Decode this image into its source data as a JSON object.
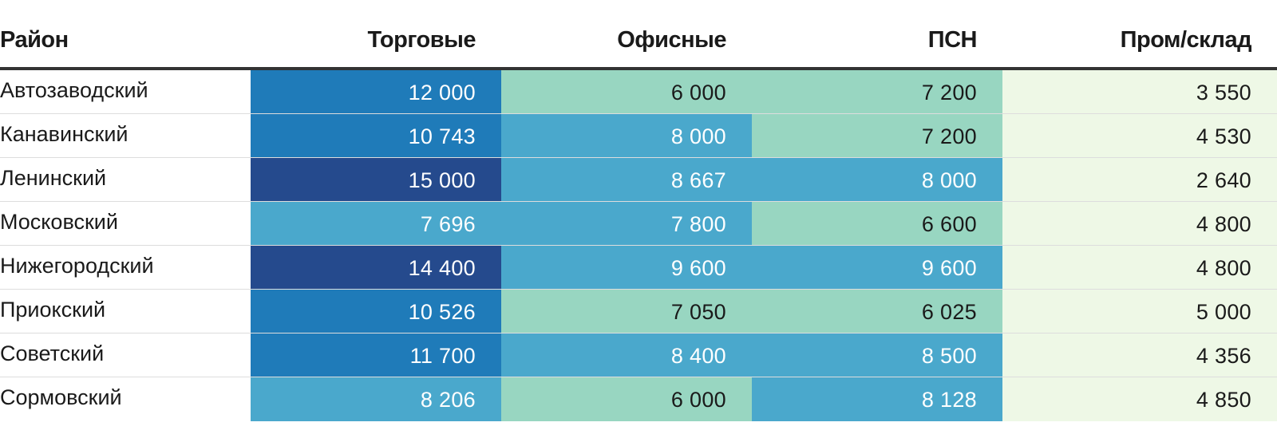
{
  "chart_data": {
    "type": "table",
    "columns": [
      "Район",
      "Торговые",
      "Офисные",
      "ПСН",
      "Пром/склад"
    ],
    "rows": [
      {
        "district": "Автозаводский",
        "values": [
          12000,
          6000,
          7200,
          3550
        ],
        "labels": [
          "12 000",
          "6 000",
          "7 200",
          "3 550"
        ],
        "colors": [
          "#1f7bb9",
          "#98d6c1",
          "#98d6c1",
          "#eef8e6"
        ]
      },
      {
        "district": "Канавинский",
        "values": [
          10743,
          8000,
          7200,
          4530
        ],
        "labels": [
          "10 743",
          "8 000",
          "7 200",
          "4 530"
        ],
        "colors": [
          "#1f7bb9",
          "#4aa8cc",
          "#98d6c1",
          "#eef8e6"
        ]
      },
      {
        "district": "Ленинский",
        "values": [
          15000,
          8667,
          8000,
          2640
        ],
        "labels": [
          "15 000",
          "8 667",
          "8 000",
          "2 640"
        ],
        "colors": [
          "#254a8d",
          "#4aa8cc",
          "#4aa8cc",
          "#eef8e6"
        ]
      },
      {
        "district": "Московский",
        "values": [
          7696,
          7800,
          6600,
          4800
        ],
        "labels": [
          "7 696",
          "7 800",
          "6 600",
          "4 800"
        ],
        "colors": [
          "#4aa8cc",
          "#4aa8cc",
          "#98d6c1",
          "#eef8e6"
        ]
      },
      {
        "district": "Нижегородский",
        "values": [
          14400,
          9600,
          9600,
          4800
        ],
        "labels": [
          "14 400",
          "9 600",
          "9 600",
          "4 800"
        ],
        "colors": [
          "#254a8d",
          "#4aa8cc",
          "#4aa8cc",
          "#eef8e6"
        ]
      },
      {
        "district": "Приокский",
        "values": [
          10526,
          7050,
          6025,
          5000
        ],
        "labels": [
          "10 526",
          "7 050",
          "6 025",
          "5 000"
        ],
        "colors": [
          "#1f7bb9",
          "#98d6c1",
          "#98d6c1",
          "#eef8e6"
        ]
      },
      {
        "district": "Советский",
        "values": [
          11700,
          8400,
          8500,
          4356
        ],
        "labels": [
          "11 700",
          "8 400",
          "8 500",
          "4 356"
        ],
        "colors": [
          "#1f7bb9",
          "#4aa8cc",
          "#4aa8cc",
          "#eef8e6"
        ]
      },
      {
        "district": "Сормовский",
        "values": [
          8206,
          6000,
          8128,
          4850
        ],
        "labels": [
          "8 206",
          "6 000",
          "8 128",
          "4 850"
        ],
        "colors": [
          "#4aa8cc",
          "#98d6c1",
          "#4aa8cc",
          "#eef8e6"
        ]
      }
    ]
  }
}
